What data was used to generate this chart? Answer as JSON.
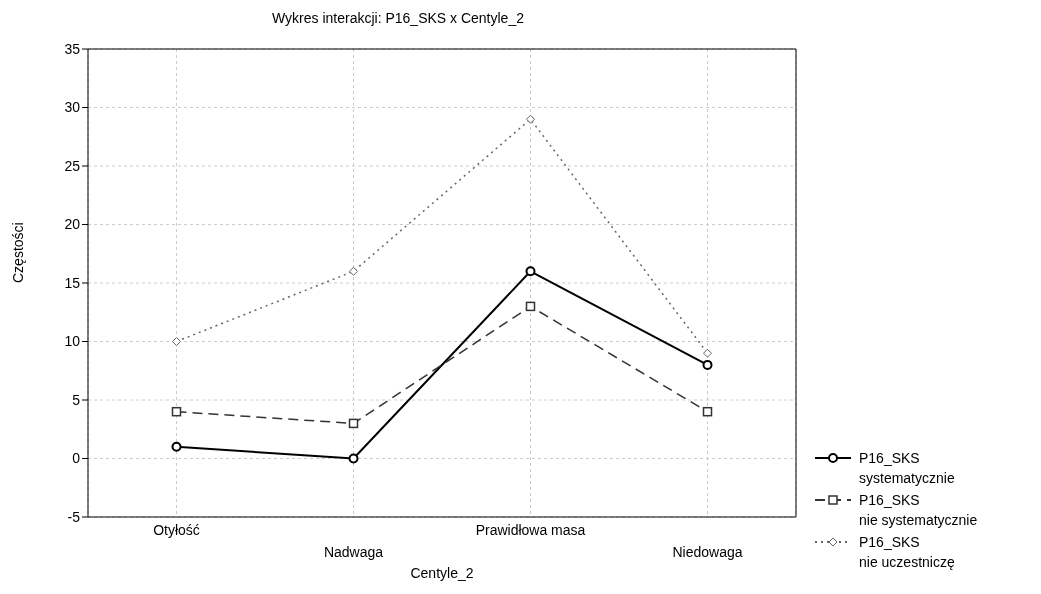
{
  "chart_data": {
    "type": "line",
    "title": "Wykres interakcji: P16_SKS x Centyle_2",
    "xlabel": "Centyle_2",
    "ylabel": "Częstości",
    "categories": [
      "Otyłość",
      "Nadwaga",
      "Prawidłowa masa",
      "Niedowaga"
    ],
    "series": [
      {
        "name": "P16_SKS\nsystematycznie",
        "color": "#000000",
        "marker": "circle",
        "line_style": "solid",
        "values": [
          1,
          0,
          16,
          8
        ]
      },
      {
        "name": "P16_SKS\nnie systematycznie",
        "color": "#333333",
        "marker": "square",
        "line_style": "dashed",
        "values": [
          4,
          3,
          13,
          4
        ]
      },
      {
        "name": "P16_SKS\nnie uczestniczę",
        "color": "#666666",
        "marker": "diamond",
        "line_style": "dotted",
        "values": [
          10,
          16,
          29,
          9
        ]
      }
    ],
    "ylim": [
      -5,
      35
    ],
    "yticks": [
      -5,
      0,
      5,
      10,
      15,
      20,
      25,
      30,
      35
    ],
    "grid": true,
    "legend": "right"
  }
}
